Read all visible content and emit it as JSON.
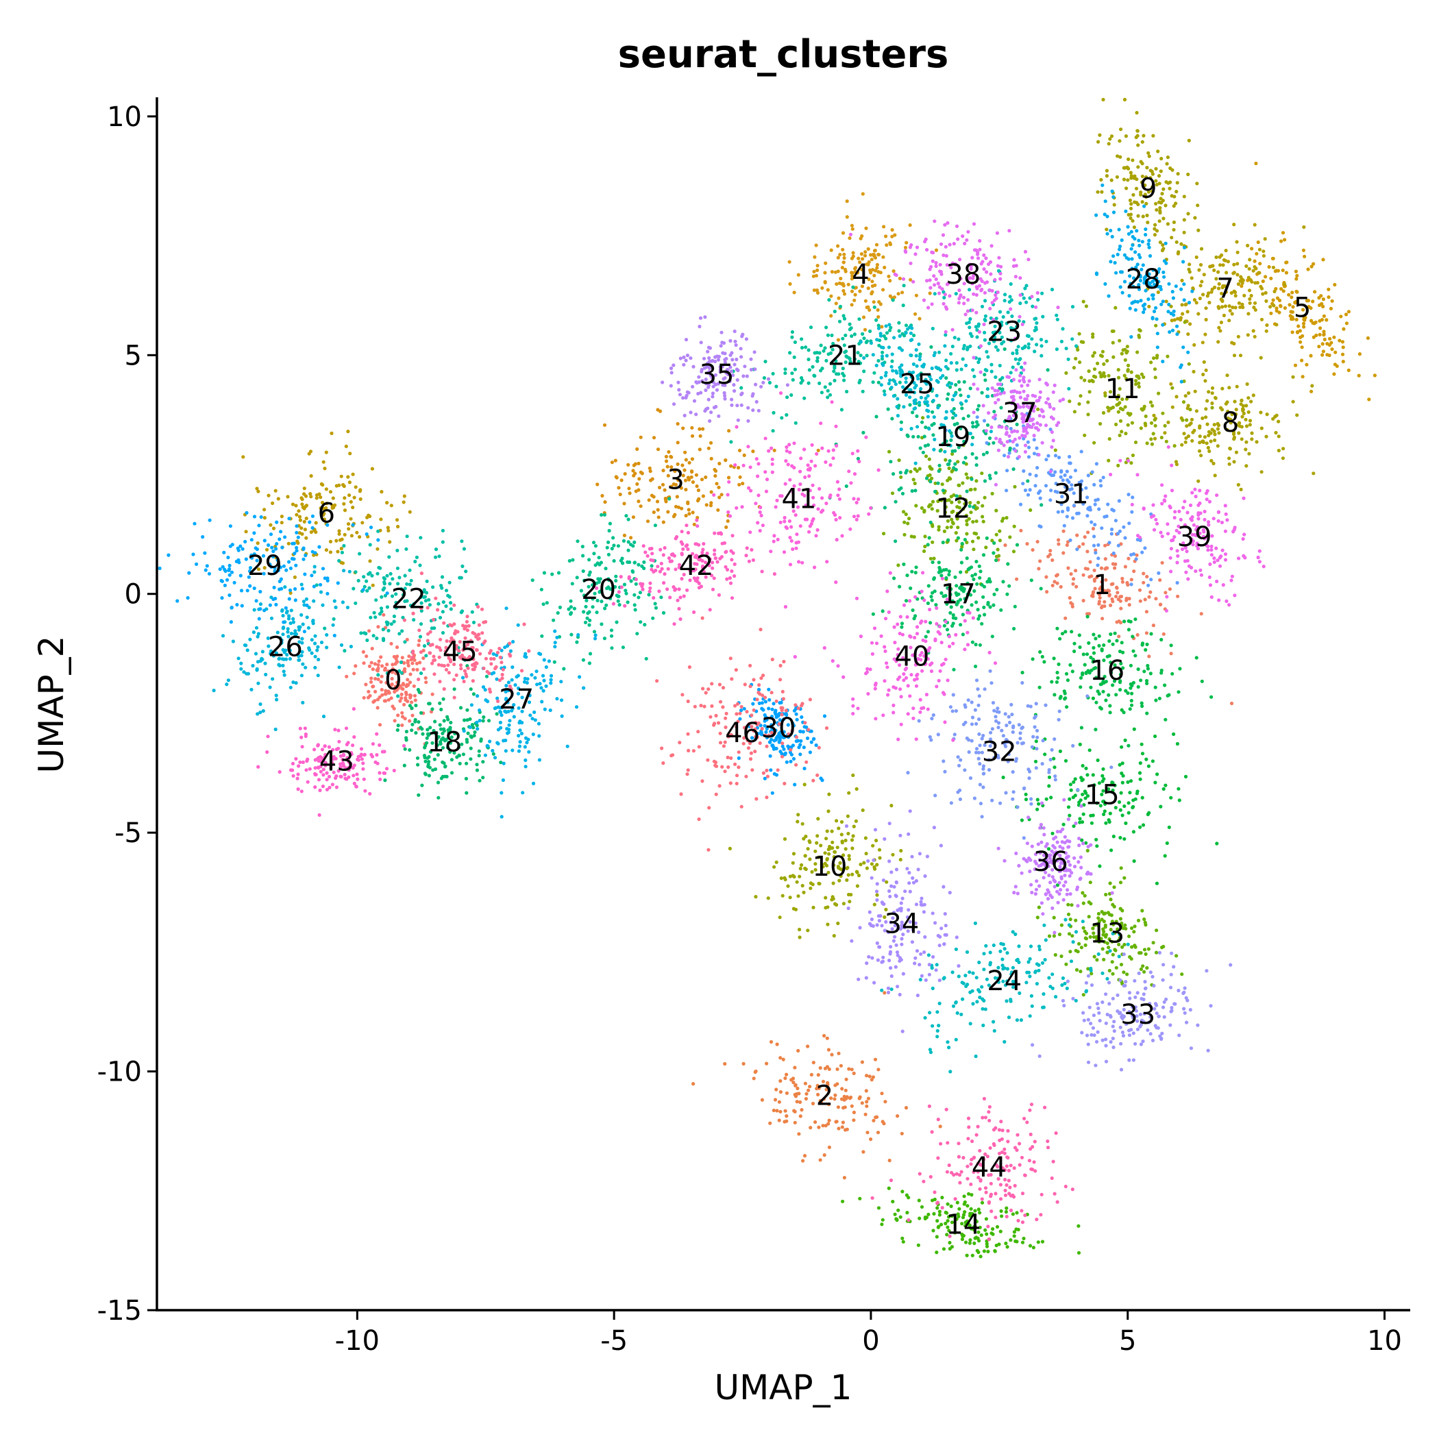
{
  "chart_data": {
    "type": "scatter",
    "title": "seurat_clusters",
    "xlabel": "UMAP_1",
    "ylabel": "UMAP_2",
    "xlim": [
      -13.9,
      10.5
    ],
    "ylim": [
      -15,
      10.4
    ],
    "xticks": [
      {
        "value": -10,
        "label": "-10"
      },
      {
        "value": -5,
        "label": "-5"
      },
      {
        "value": 0,
        "label": "0"
      },
      {
        "value": 5,
        "label": "5"
      },
      {
        "value": 10,
        "label": "10"
      }
    ],
    "yticks": [
      {
        "value": 10,
        "label": "10"
      },
      {
        "value": 5,
        "label": "5"
      },
      {
        "value": 0,
        "label": "0"
      },
      {
        "value": -5,
        "label": "-5"
      },
      {
        "value": -10,
        "label": "-10"
      },
      {
        "value": -15,
        "label": "-15"
      }
    ],
    "grid": false,
    "legend": "none",
    "clusters": [
      {
        "label": "0",
        "x": -9.3,
        "y": -1.8,
        "color": "#F8766D"
      },
      {
        "label": "1",
        "x": 4.5,
        "y": 0.2,
        "color": "#F07E62"
      },
      {
        "label": "2",
        "x": -0.9,
        "y": -10.5,
        "color": "#EB8245"
      },
      {
        "label": "3",
        "x": -3.8,
        "y": 2.4,
        "color": "#D8900F"
      },
      {
        "label": "4",
        "x": -0.2,
        "y": 6.7,
        "color": "#D99A14"
      },
      {
        "label": "5",
        "x": 8.4,
        "y": 6.0,
        "color": "#D09A00"
      },
      {
        "label": "6",
        "x": -10.6,
        "y": 1.7,
        "color": "#BE9C00"
      },
      {
        "label": "7",
        "x": 6.9,
        "y": 6.4,
        "color": "#B5A100"
      },
      {
        "label": "8",
        "x": 7.0,
        "y": 3.6,
        "color": "#ABA300"
      },
      {
        "label": "9",
        "x": 5.4,
        "y": 8.5,
        "color": "#A9A200"
      },
      {
        "label": "10",
        "x": -0.8,
        "y": -5.7,
        "color": "#9CA700"
      },
      {
        "label": "11",
        "x": 4.9,
        "y": 4.3,
        "color": "#8EAB00"
      },
      {
        "label": "12",
        "x": 1.6,
        "y": 1.8,
        "color": "#7CAE00"
      },
      {
        "label": "13",
        "x": 4.6,
        "y": -7.1,
        "color": "#64B200"
      },
      {
        "label": "14",
        "x": 1.8,
        "y": -13.2,
        "color": "#3EB800"
      },
      {
        "label": "15",
        "x": 4.5,
        "y": -4.2,
        "color": "#00BA38"
      },
      {
        "label": "16",
        "x": 4.6,
        "y": -1.6,
        "color": "#00BC4A"
      },
      {
        "label": "17",
        "x": 1.7,
        "y": 0.0,
        "color": "#00BF63"
      },
      {
        "label": "18",
        "x": -8.3,
        "y": -3.1,
        "color": "#00B96E"
      },
      {
        "label": "19",
        "x": 1.6,
        "y": 3.3,
        "color": "#00BC80"
      },
      {
        "label": "20",
        "x": -5.3,
        "y": 0.1,
        "color": "#00C08B"
      },
      {
        "label": "21",
        "x": -0.5,
        "y": 5.0,
        "color": "#00C19A"
      },
      {
        "label": "22",
        "x": -9.0,
        "y": -0.1,
        "color": "#00BFA6"
      },
      {
        "label": "23",
        "x": 2.6,
        "y": 5.5,
        "color": "#00C0B4"
      },
      {
        "label": "24",
        "x": 2.6,
        "y": -8.1,
        "color": "#00BCC2"
      },
      {
        "label": "25",
        "x": 0.9,
        "y": 4.4,
        "color": "#00BBD0"
      },
      {
        "label": "26",
        "x": -11.4,
        "y": -1.1,
        "color": "#00B6DA"
      },
      {
        "label": "27",
        "x": -6.9,
        "y": -2.2,
        "color": "#00B3E8"
      },
      {
        "label": "28",
        "x": 5.3,
        "y": 6.6,
        "color": "#00ACEC"
      },
      {
        "label": "29",
        "x": -11.8,
        "y": 0.6,
        "color": "#00A9FF"
      },
      {
        "label": "30",
        "x": -1.8,
        "y": -2.8,
        "color": "#00A2FF"
      },
      {
        "label": "31",
        "x": 3.9,
        "y": 2.1,
        "color": "#619CFF"
      },
      {
        "label": "32",
        "x": 2.5,
        "y": -3.3,
        "color": "#7F9BF7"
      },
      {
        "label": "33",
        "x": 5.2,
        "y": -8.8,
        "color": "#9E96FA"
      },
      {
        "label": "34",
        "x": 0.6,
        "y": -6.9,
        "color": "#A88CFF"
      },
      {
        "label": "35",
        "x": -3.0,
        "y": 4.6,
        "color": "#B384F6"
      },
      {
        "label": "36",
        "x": 3.5,
        "y": -5.6,
        "color": "#C77CFF"
      },
      {
        "label": "37",
        "x": 2.9,
        "y": 3.8,
        "color": "#DB72FB"
      },
      {
        "label": "38",
        "x": 1.8,
        "y": 6.7,
        "color": "#E66BF0"
      },
      {
        "label": "39",
        "x": 6.3,
        "y": 1.2,
        "color": "#F066EA"
      },
      {
        "label": "40",
        "x": 0.8,
        "y": -1.3,
        "color": "#F564E3"
      },
      {
        "label": "41",
        "x": -1.4,
        "y": 2.0,
        "color": "#FA62DB"
      },
      {
        "label": "42",
        "x": -3.4,
        "y": 0.6,
        "color": "#FF61C3"
      },
      {
        "label": "43",
        "x": -10.4,
        "y": -3.5,
        "color": "#FF61CC"
      },
      {
        "label": "44",
        "x": 2.3,
        "y": -12.0,
        "color": "#FF64B0"
      },
      {
        "label": "45",
        "x": -8.0,
        "y": -1.2,
        "color": "#FF6C91"
      },
      {
        "label": "46",
        "x": -2.5,
        "y": -2.9,
        "color": "#FC717F"
      }
    ]
  }
}
